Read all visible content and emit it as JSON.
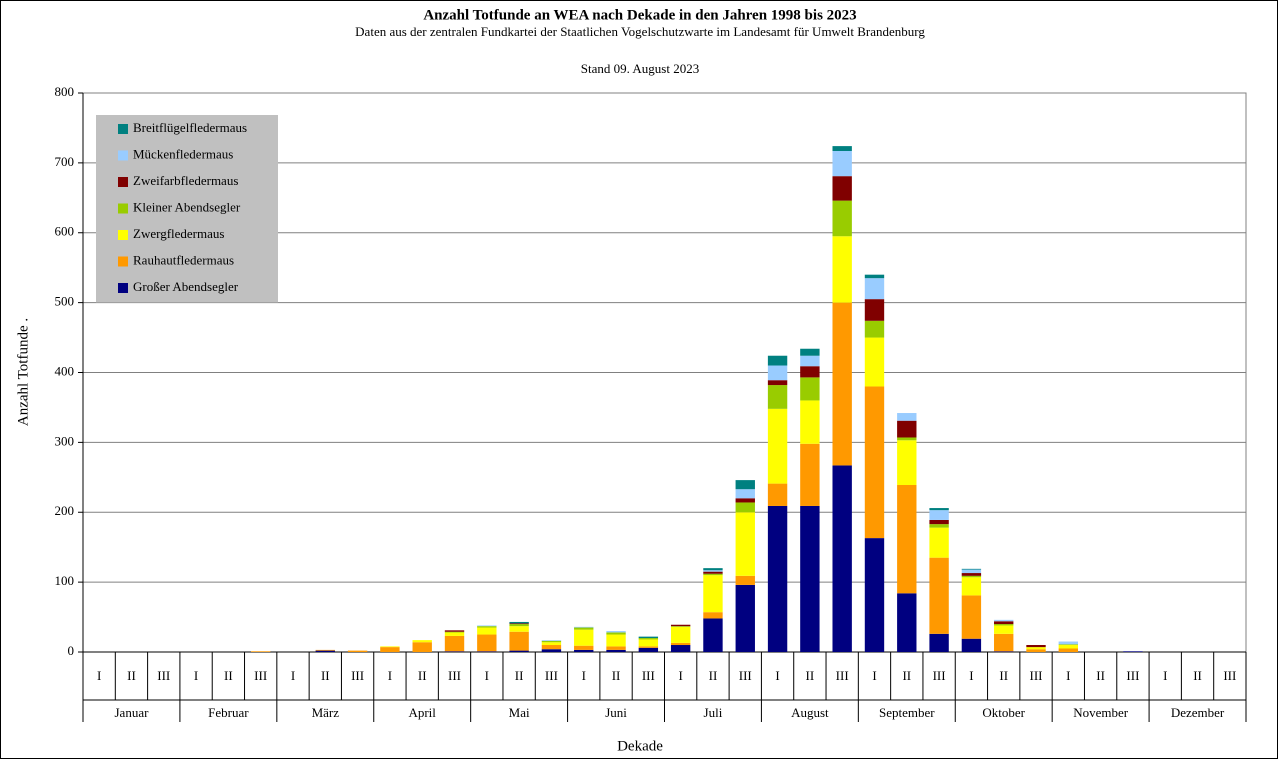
{
  "chart_data": {
    "type": "stacked_bar",
    "title": "Anzahl Totfunde an WEA nach Dekade in den Jahren 1998 bis 2023",
    "subtitle": "Daten aus der zentralen Fundkartei der Staatlichen Vogelschutzwarte im Landesamt für Umwelt Brandenburg",
    "note": "Stand 09. August 2023",
    "xlabel": "Dekade",
    "ylabel": "Anzahl Totfunde .",
    "categories": [
      "I",
      "II",
      "III",
      "I",
      "II",
      "III",
      "I",
      "II",
      "III",
      "I",
      "II",
      "III",
      "I",
      "II",
      "III",
      "I",
      "II",
      "III",
      "I",
      "II",
      "III",
      "I",
      "II",
      "III",
      "I",
      "II",
      "III",
      "I",
      "II",
      "III",
      "I",
      "II",
      "III",
      "I",
      "II",
      "III"
    ],
    "groups": [
      "Januar",
      "Februar",
      "März",
      "April",
      "Mai",
      "Juni",
      "Juli",
      "August",
      "September",
      "Oktober",
      "November",
      "Dezember"
    ],
    "series": [
      {
        "name": "Großer Abendsegler",
        "color": "#000080",
        "values": [
          0,
          0,
          0,
          0,
          0,
          0,
          0,
          2,
          0,
          0,
          0,
          1,
          1,
          2,
          4,
          3,
          3,
          6,
          10,
          48,
          96,
          209,
          209,
          267,
          163,
          84,
          26,
          19,
          1,
          0,
          0,
          0,
          1,
          0,
          0,
          0
        ]
      },
      {
        "name": "Rauhautfledermaus",
        "color": "#ff9900",
        "values": [
          0,
          0,
          0,
          0,
          0,
          1,
          0,
          1,
          2,
          7,
          14,
          22,
          24,
          27,
          6,
          6,
          5,
          2,
          3,
          9,
          13,
          32,
          89,
          233,
          217,
          155,
          109,
          62,
          25,
          4,
          5,
          0,
          0,
          0,
          0,
          0
        ]
      },
      {
        "name": "Zwergfledermaus",
        "color": "#ffff00",
        "values": [
          0,
          0,
          0,
          0,
          0,
          0,
          0,
          0,
          0,
          1,
          3,
          5,
          10,
          8,
          4,
          23,
          17,
          10,
          23,
          53,
          91,
          107,
          62,
          95,
          70,
          64,
          43,
          26,
          12,
          3,
          5,
          0,
          0,
          0,
          0,
          0
        ]
      },
      {
        "name": "Kleiner Abendsegler",
        "color": "#99cc00",
        "values": [
          0,
          0,
          0,
          0,
          0,
          0,
          0,
          0,
          0,
          0,
          0,
          1,
          2,
          3,
          2,
          3,
          3,
          2,
          1,
          2,
          14,
          34,
          33,
          51,
          24,
          4,
          5,
          2,
          2,
          0,
          1,
          0,
          0,
          0,
          0,
          0
        ]
      },
      {
        "name": "Zweifarbfledermaus",
        "color": "#800000",
        "values": [
          0,
          0,
          0,
          0,
          0,
          0,
          0,
          0,
          0,
          0,
          0,
          2,
          0,
          1,
          0,
          0,
          0,
          0,
          2,
          3,
          6,
          7,
          16,
          35,
          31,
          24,
          6,
          4,
          4,
          3,
          0,
          0,
          0,
          0,
          0,
          0
        ]
      },
      {
        "name": "Mückenfledermaus",
        "color": "#99ccff",
        "values": [
          0,
          0,
          0,
          0,
          0,
          0,
          0,
          0,
          0,
          0,
          0,
          0,
          1,
          0,
          1,
          1,
          2,
          0,
          0,
          2,
          13,
          21,
          15,
          36,
          30,
          11,
          14,
          5,
          2,
          0,
          4,
          0,
          0,
          0,
          0,
          0
        ]
      },
      {
        "name": "Breitflügelfledermaus",
        "color": "#008080",
        "values": [
          0,
          0,
          0,
          0,
          0,
          0,
          0,
          0,
          0,
          0,
          0,
          0,
          0,
          2,
          0,
          0,
          0,
          2,
          0,
          3,
          13,
          14,
          10,
          7,
          5,
          0,
          3,
          1,
          0,
          0,
          0,
          0,
          0,
          0,
          0,
          0
        ]
      }
    ],
    "ylim": [
      0,
      800
    ],
    "yticks": [
      0,
      100,
      200,
      300,
      400,
      500,
      600,
      700,
      800
    ],
    "grid": true,
    "legend": "upper-left"
  }
}
